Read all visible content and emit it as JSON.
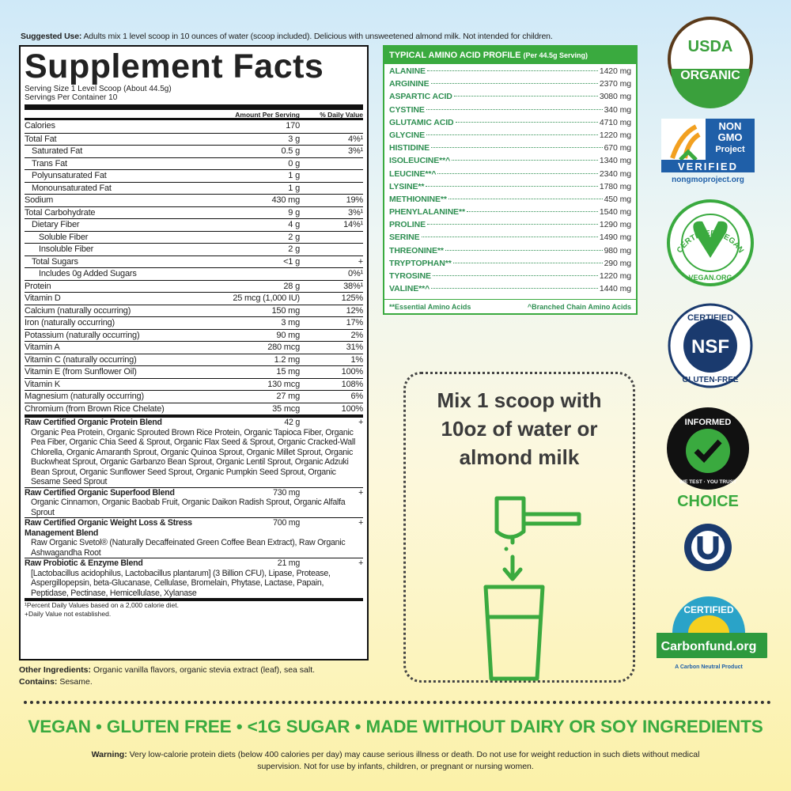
{
  "suggested_use": {
    "label": "Suggested Use:",
    "text": "Adults mix 1 level scoop in 10 ounces of water (scoop included). Delicious with unsweetened almond milk. Not intended for children."
  },
  "facts": {
    "title": "Supplement Facts",
    "serving_size": "Serving Size 1 Level Scoop (About 44.5g)",
    "servings": "Servings Per Container 10",
    "header": {
      "amount": "Amount Per Serving",
      "dv": "% Daily Value"
    },
    "rows": [
      {
        "name": "Calories",
        "amount": "170"
      },
      {
        "name": "Total Fat",
        "amount": "3 g",
        "dv": "4%¹"
      },
      {
        "name": "Saturated Fat",
        "amount": "0.5 g",
        "dv": "3%¹"
      },
      {
        "name": "Trans Fat",
        "amount": "0 g"
      },
      {
        "name": "Polyunsaturated Fat",
        "amount": "1 g"
      },
      {
        "name": "Monounsaturated Fat",
        "amount": "1 g"
      },
      {
        "name": "Sodium",
        "amount": "430 mg",
        "dv": "19%"
      },
      {
        "name": "Total Carbohydrate",
        "amount": "9 g",
        "dv": "3%¹"
      },
      {
        "name": "Dietary Fiber",
        "amount": "4 g",
        "dv": "14%¹"
      },
      {
        "name": "Soluble Fiber",
        "amount": "2 g"
      },
      {
        "name": "Insoluble Fiber",
        "amount": "2 g"
      },
      {
        "name": "Total Sugars",
        "amount": "<1 g",
        "dv": "+"
      },
      {
        "name": "Includes 0g Added Sugars",
        "dv": "0%¹"
      },
      {
        "name": "Protein",
        "amount": "28 g",
        "dv": "38%¹"
      },
      {
        "name": "Vitamin D",
        "amount": "25 mcg (1,000 IU)",
        "dv": "125%"
      },
      {
        "name": "Calcium (naturally occurring)",
        "amount": "150 mg",
        "dv": "12%"
      },
      {
        "name": "Iron (naturally occurring)",
        "amount": "3 mg",
        "dv": "17%"
      },
      {
        "name": "Potassium (naturally occurring)",
        "amount": "90 mg",
        "dv": "2%"
      },
      {
        "name": "Vitamin A",
        "amount": "280 mcg",
        "dv": "31%"
      },
      {
        "name": "Vitamin C (naturally occurring)",
        "amount": "1.2 mg",
        "dv": "1%"
      },
      {
        "name": "Vitamin E (from Sunflower Oil)",
        "amount": "15 mg",
        "dv": "100%"
      },
      {
        "name": "Vitamin K",
        "amount": "130 mcg",
        "dv": "108%"
      },
      {
        "name": "Magnesium (naturally occurring)",
        "amount": "27 mg",
        "dv": "6%"
      },
      {
        "name": "Chromium (from Brown Rice Chelate)",
        "amount": "35 mcg",
        "dv": "100%"
      }
    ],
    "blends": [
      {
        "name": "Raw Certified Organic Protein Blend",
        "amount": "42 g",
        "dv": "+",
        "desc": "Organic Pea Protein, Organic Sprouted Brown Rice Protein, Organic Tapioca Fiber, Organic Pea Fiber, Organic Chia Seed & Sprout, Organic Flax Seed & Sprout, Organic Cracked-Wall Chlorella, Organic Amaranth Sprout, Organic Quinoa Sprout, Organic Millet Sprout, Organic Buckwheat Sprout, Organic Garbanzo Bean Sprout, Organic Lentil Sprout, Organic Adzuki Bean Sprout, Organic Sunflower Seed Sprout, Organic Pumpkin Seed Sprout, Organic Sesame Seed Sprout"
      },
      {
        "name": "Raw Certified Organic Superfood Blend",
        "amount": "730 mg",
        "dv": "+",
        "desc": "Organic Cinnamon, Organic Baobab Fruit, Organic Daikon Radish Sprout, Organic Alfalfa Sprout"
      },
      {
        "name": "Raw Certified Organic Weight Loss & Stress Management Blend",
        "amount": "700 mg",
        "dv": "+",
        "desc": "Raw Organic Svetol® (Naturally Decaffeinated Green Coffee Bean Extract), Raw Organic Ashwagandha Root"
      },
      {
        "name": "Raw Probiotic & Enzyme Blend",
        "amount": "21 mg",
        "dv": "+",
        "desc": "[Lactobacillus acidophilus, Lactobacillus plantarum] (3 Billion CFU), Lipase, Protease, Aspergillopepsin, beta-Glucanase, Cellulase, Bromelain, Phytase, Lactase, Papain, Peptidase, Pectinase, Hemicellulase, Xylanase"
      }
    ],
    "footnotes": [
      "¹Percent Daily Values based on a 2,000 calorie diet.",
      "+Daily Value not established."
    ]
  },
  "other_ingredients": {
    "label": "Other Ingredients:",
    "text": "Organic vanilla flavors, organic stevia extract (leaf), sea salt."
  },
  "contains": {
    "label": "Contains:",
    "text": "Sesame."
  },
  "amino": {
    "title": "TYPICAL AMINO ACID PROFILE",
    "subtitle": "(Per 44.5g Serving)",
    "rows": [
      [
        "ALANINE",
        "1420 mg"
      ],
      [
        "ARGININE",
        "2370 mg"
      ],
      [
        "ASPARTIC ACID",
        "3080 mg"
      ],
      [
        "CYSTINE",
        "340 mg"
      ],
      [
        "GLUTAMIC ACID",
        "4710 mg"
      ],
      [
        "GLYCINE",
        "1220 mg"
      ],
      [
        "HISTIDINE",
        "670 mg"
      ],
      [
        "ISOLEUCINE**^",
        "1340 mg"
      ],
      [
        "LEUCINE**^",
        "2340 mg"
      ],
      [
        "LYSINE**",
        "1780 mg"
      ],
      [
        "METHIONINE**",
        "450 mg"
      ],
      [
        "PHENYLALANINE**",
        "1540 mg"
      ],
      [
        "PROLINE",
        "1290 mg"
      ],
      [
        "SERINE",
        "1490 mg"
      ],
      [
        "THREONINE**",
        "980 mg"
      ],
      [
        "TRYPTOPHAN**",
        "290 mg"
      ],
      [
        "TYROSINE",
        "1220 mg"
      ],
      [
        "VALINE**^",
        "1440 mg"
      ]
    ],
    "notes": [
      "**Essential Amino Acids",
      "^Branched Chain Amino Acids"
    ]
  },
  "mix": [
    "Mix 1 scoop with",
    "10oz of water or",
    "almond milk"
  ],
  "badges": {
    "usda": {
      "top": "USDA",
      "bottom": "ORGANIC"
    },
    "nongmo": {
      "lines": [
        "NON",
        "GMO",
        "Project"
      ],
      "verified": "VERIFIED",
      "url": "nongmoproject.org"
    },
    "vegan": {
      "top": "CERTIFIED VEGAN",
      "bottom": "VEGAN.ORG"
    },
    "nsf": {
      "top": "CERTIFIED",
      "mid": "NSF",
      "bottom": "GLUTEN-FREE"
    },
    "informed": {
      "top": "INFORMED",
      "bottom": "WE TEST · YOU TRUST",
      "choice": "CHOICE"
    },
    "carbon": {
      "top": "CERTIFIED",
      "name": "Carbonfund.org",
      "tagline": "A Carbon Neutral Product"
    }
  },
  "banner": "VEGAN • GLUTEN FREE • <1G SUGAR • MADE WITHOUT DAIRY OR SOY INGREDIENTS",
  "warning": {
    "label": "Warning:",
    "text": "Very low-calorie protein diets (below 400 calories per day) may cause serious illness or death. Do not use for weight reduction in such diets without medical supervision. Not for use by infants, children, or pregnant or nursing women."
  }
}
